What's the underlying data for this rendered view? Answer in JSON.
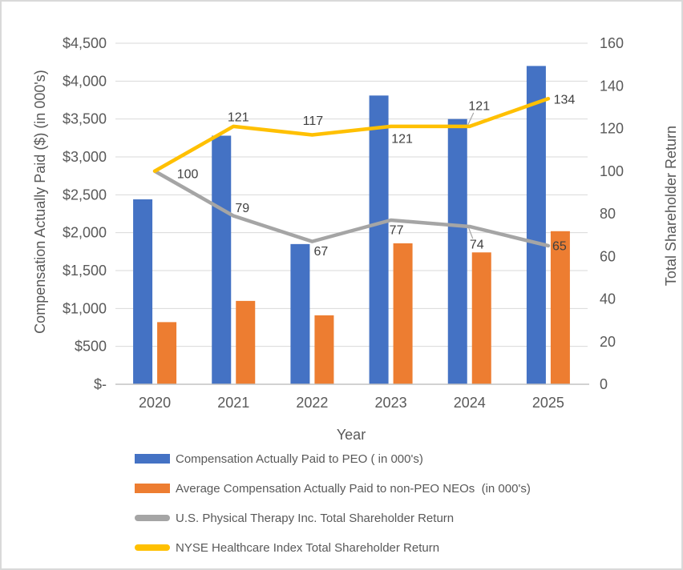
{
  "chart_data": {
    "type": "combo-bar-line",
    "title": "",
    "x_axis": {
      "title": "Year",
      "categories": [
        "2020",
        "2021",
        "2022",
        "2023",
        "2024",
        "2025"
      ]
    },
    "left_axis": {
      "title": "Compensation Actually Paid ($) (in 000's)",
      "min": 0,
      "max": 4500,
      "step": 500,
      "tick_labels": [
        "$4,500",
        "$4,000",
        "$3,500",
        "$3,000",
        "$2,500",
        "$2,000",
        "$1,500",
        "$1,000",
        "$500",
        "$-"
      ],
      "tick_values": [
        4500,
        4000,
        3500,
        3000,
        2500,
        2000,
        1500,
        1000,
        500,
        0
      ]
    },
    "right_axis": {
      "title": "Total Shareholder Return",
      "min": 0,
      "max": 160,
      "step": 20,
      "tick_labels": [
        "160",
        "140",
        "120",
        "100",
        "80",
        "60",
        "40",
        "20",
        "0"
      ],
      "tick_values": [
        160,
        140,
        120,
        100,
        80,
        60,
        40,
        20,
        0
      ]
    },
    "grid": "horizontal",
    "legend_position": "bottom-left",
    "series": [
      {
        "key": "peo",
        "name": "Compensation Actually Paid to PEO ( in 000's)",
        "type": "bar",
        "axis": "left",
        "color": "#4472C4",
        "values": [
          2440,
          3280,
          1850,
          3810,
          3500,
          4200
        ]
      },
      {
        "key": "neo",
        "name": "Average Compensation Actually Paid to non-PEO NEOs  (in 000's)",
        "type": "bar",
        "axis": "left",
        "color": "#ED7D31",
        "values": [
          820,
          1100,
          910,
          1860,
          1740,
          2020
        ]
      },
      {
        "key": "uspt",
        "name": "U.S. Physical Therapy Inc. Total Shareholder Return",
        "type": "line",
        "axis": "right",
        "color": "#A5A5A5",
        "values": [
          100,
          79,
          67,
          77,
          74,
          65
        ],
        "labels": [
          "",
          "79",
          "67",
          "77",
          "74",
          "65"
        ]
      },
      {
        "key": "nyse",
        "name": "NYSE Healthcare Index Total Shareholder Return",
        "type": "line",
        "axis": "right",
        "color": "#FFC000",
        "values": [
          100,
          121,
          117,
          121,
          121,
          134
        ],
        "labels": [
          "100",
          "121",
          "117",
          "121",
          "121",
          "134"
        ]
      }
    ]
  },
  "legend": {
    "items": [
      {
        "label": "Compensation Actually Paid to PEO ( in 000's)",
        "marker": "bar",
        "color": "#4472C4"
      },
      {
        "label": "Average Compensation Actually Paid to non-PEO NEOs  (in 000's)",
        "marker": "bar",
        "color": "#ED7D31"
      },
      {
        "label": "U.S. Physical Therapy Inc. Total Shareholder Return",
        "marker": "line",
        "color": "#A5A5A5"
      },
      {
        "label": "NYSE Healthcare Index Total Shareholder Return",
        "marker": "line",
        "color": "#FFC000"
      }
    ]
  },
  "colors": {
    "gridline": "#D9D9D9",
    "axis_line": "#C3C3C3",
    "tick_text": "#595959",
    "data_label_text": "#404040",
    "leader_line": "#A6A6A6",
    "frame_border": "#D9D9D9"
  }
}
